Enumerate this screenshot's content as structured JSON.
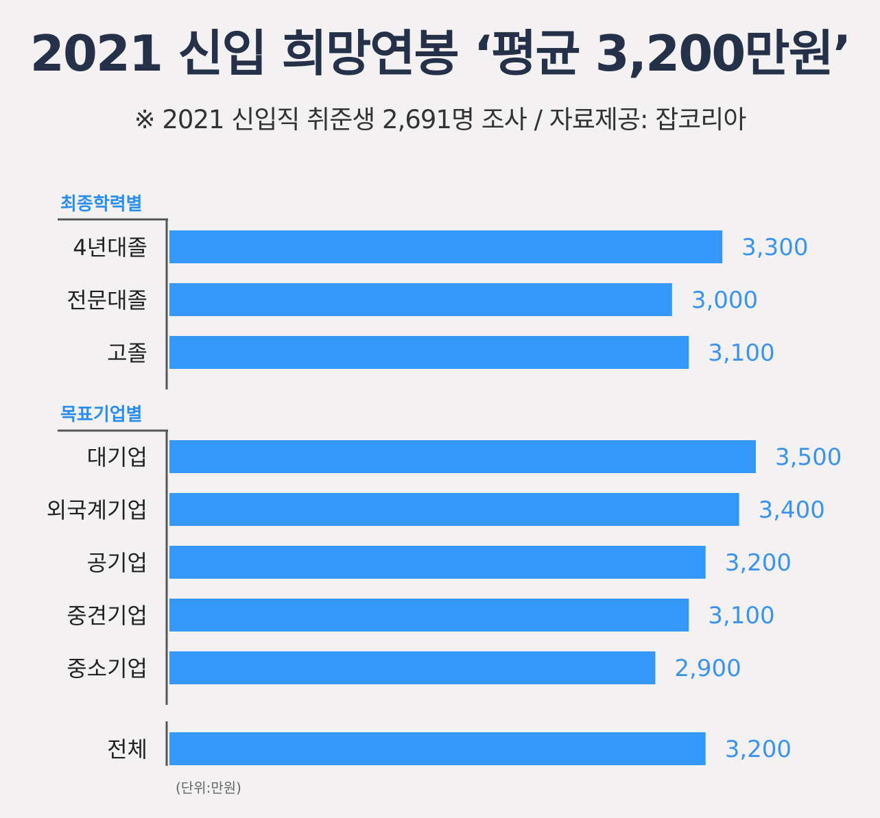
{
  "title": "2021 신입 희망연봉 ‘평균 3,200만원’",
  "subtitle": "※ 2021 신입직 취준생 2,691명 조사 / 자료제공: 잡코리아",
  "colors": {
    "bar": "#3597f7",
    "value_label": "#3a93ec",
    "group_label": "#2a8ef0",
    "category_label": "#222222",
    "axis": "#555555",
    "background": "#f3f1f1"
  },
  "chart_data": {
    "type": "bar",
    "orientation": "horizontal",
    "unit_note": "(단위:만원)",
    "groups": [
      {
        "name": "최종학력별",
        "categories": [
          "4년대졸",
          "전문대졸",
          "고졸"
        ],
        "values": [
          3300,
          3000,
          3100
        ],
        "value_labels": [
          "3,300",
          "3,000",
          "3,100"
        ]
      },
      {
        "name": "목표기업별",
        "categories": [
          "대기업",
          "외국계기업",
          "공기업",
          "중견기업",
          "중소기업"
        ],
        "values": [
          3500,
          3400,
          3200,
          3100,
          2900
        ],
        "value_labels": [
          "3,500",
          "3,400",
          "3,200",
          "3,100",
          "2,900"
        ]
      },
      {
        "name": "",
        "categories": [
          "전체"
        ],
        "values": [
          3200
        ],
        "value_labels": [
          "3,200"
        ]
      }
    ],
    "xlim": [
      0,
      3500
    ],
    "grid": false
  }
}
